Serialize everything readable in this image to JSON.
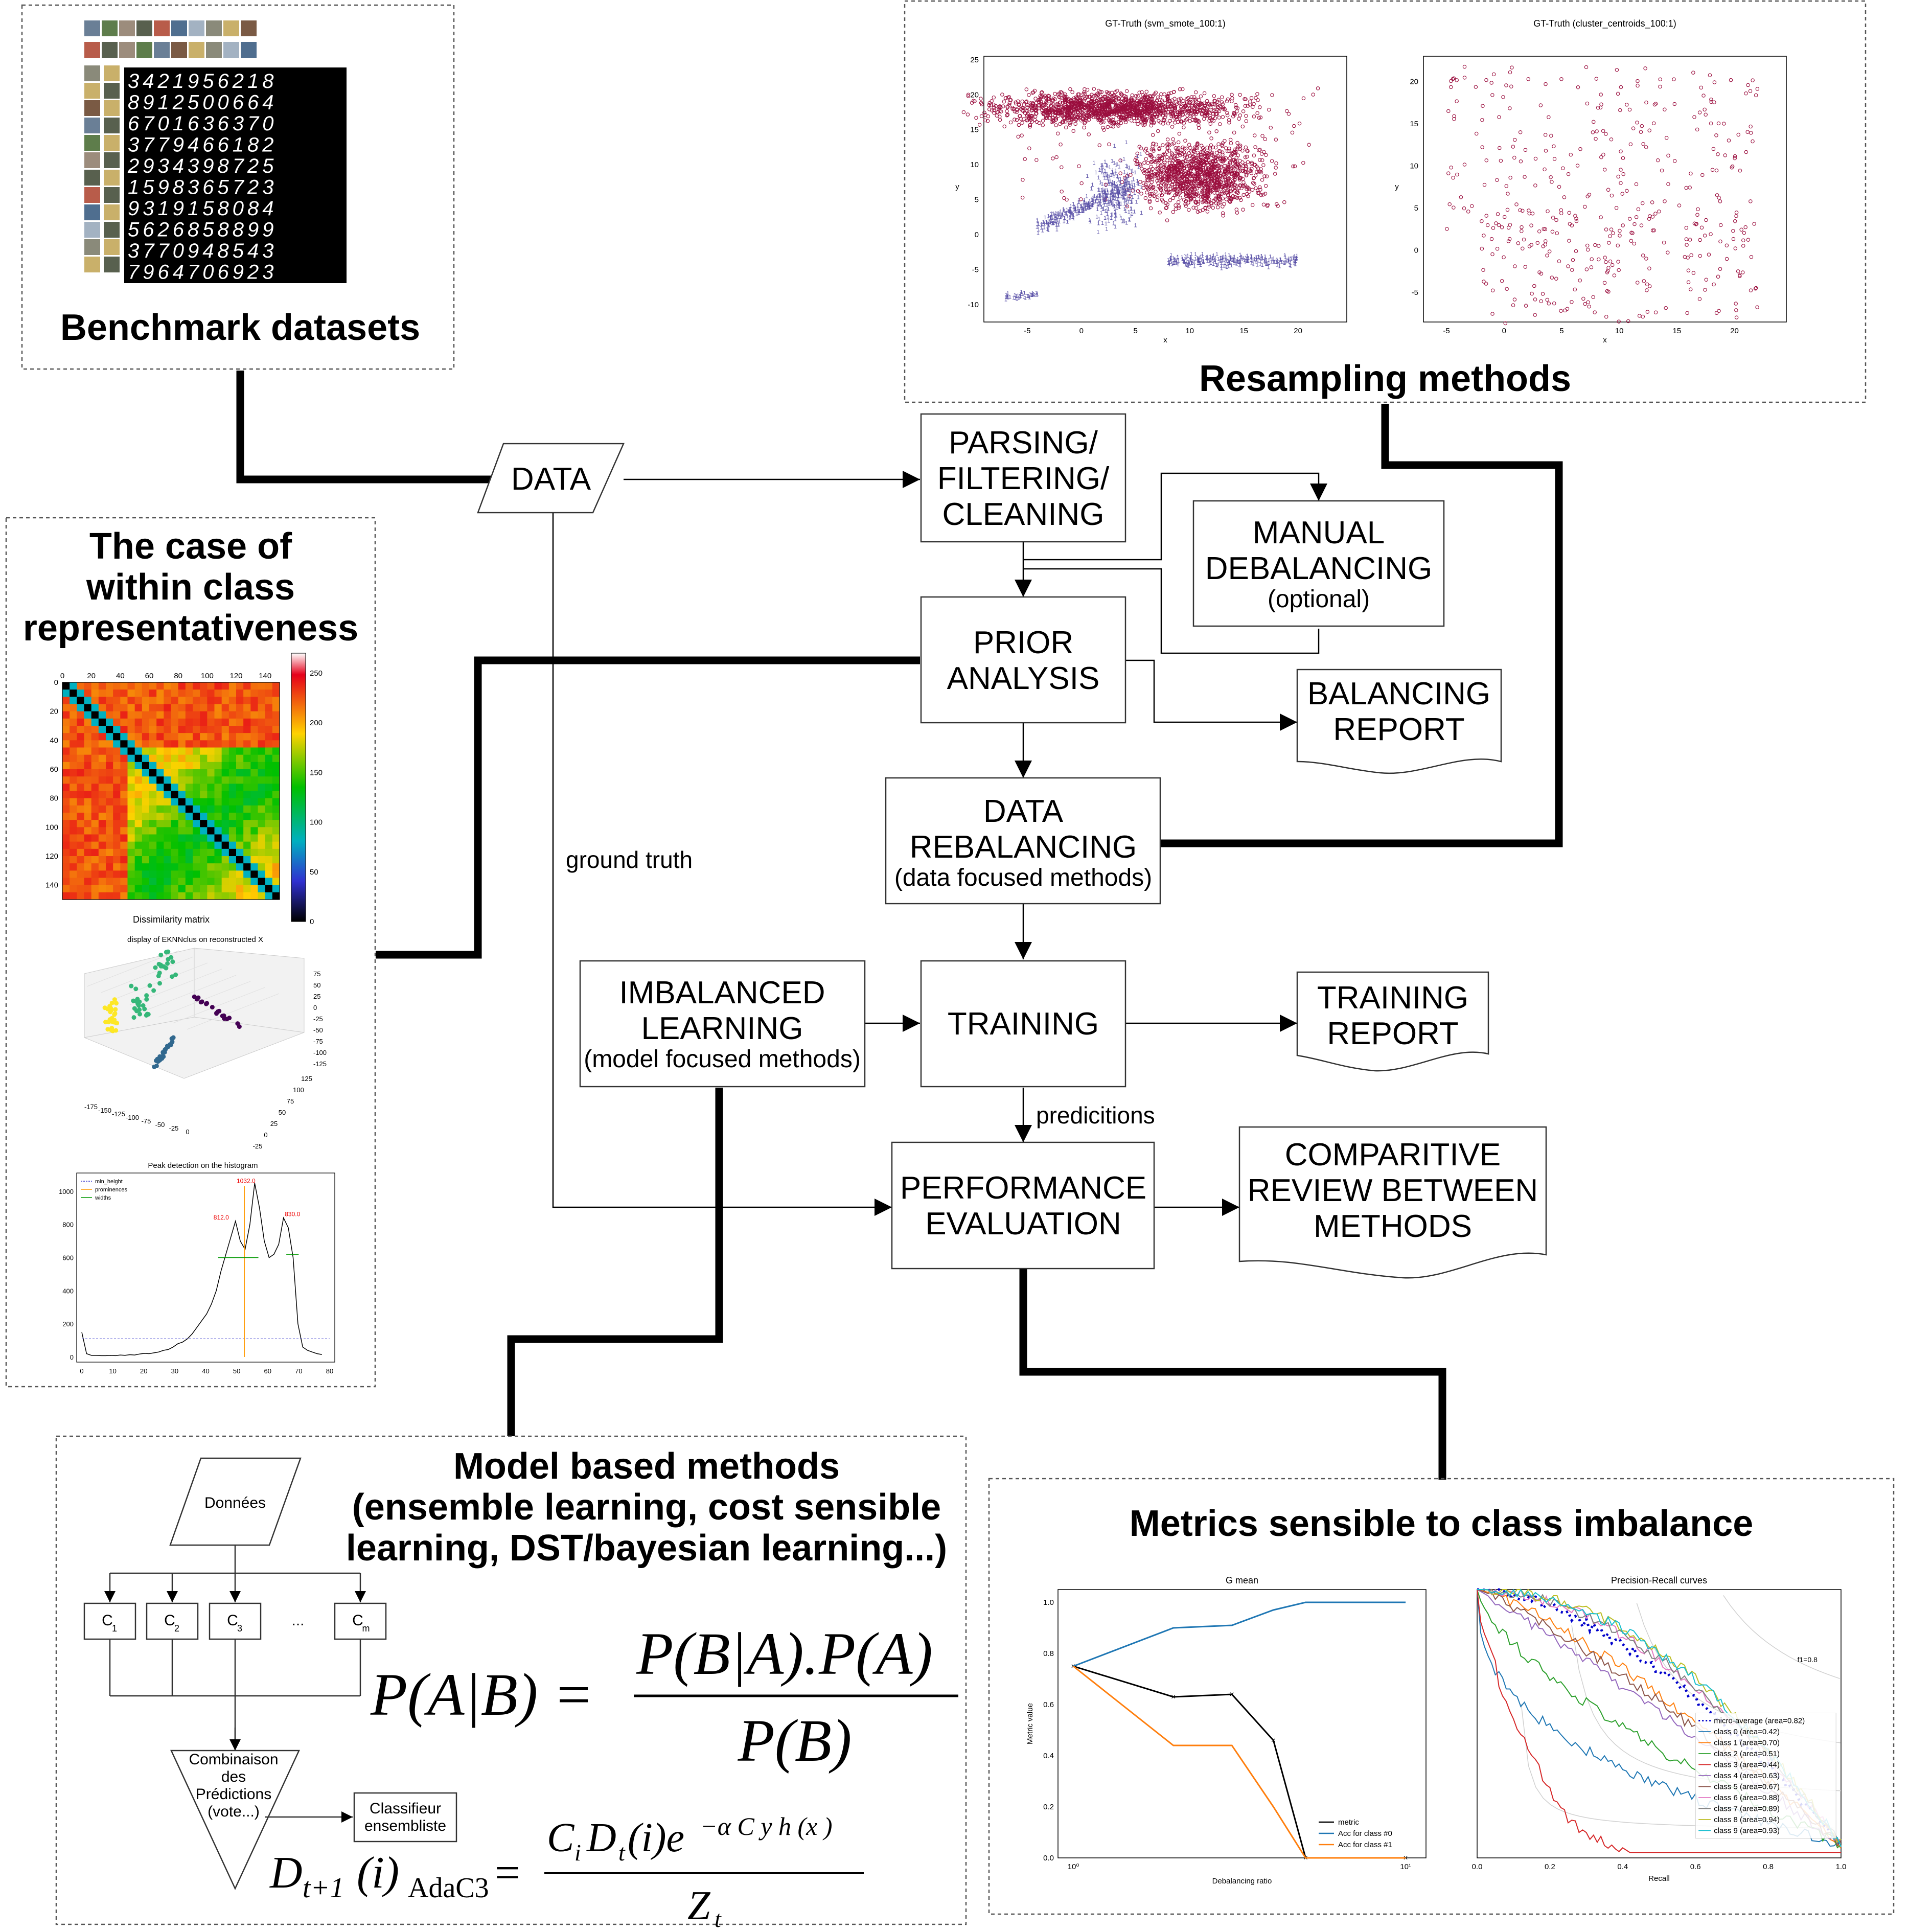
{
  "sections": {
    "benchmark": "Benchmark datasets",
    "resampling": "Resampling methods",
    "within_class": [
      "The case of",
      "within class",
      "representativeness"
    ],
    "model_based": [
      "Model based methods",
      "(ensemble learning, cost sensible",
      "learning, DST/bayesian learning...)"
    ],
    "metrics": "Metrics sensible to class imbalance"
  },
  "flow": {
    "data": "DATA",
    "parsing": [
      "PARSING/",
      "FILTERING/",
      "CLEANING"
    ],
    "manual": [
      "MANUAL",
      "DEBALANCING"
    ],
    "manual_sub": "(optional)",
    "prior": [
      "PRIOR",
      "ANALYSIS"
    ],
    "balancing_report": [
      "BALANCING",
      "REPORT"
    ],
    "rebalancing": [
      "DATA",
      "REBALANCING"
    ],
    "rebalancing_sub": "(data focused methods)",
    "imbalanced": [
      "IMBALANCED",
      "LEARNING"
    ],
    "imbalanced_sub": "(model focused methods)",
    "training": "TRAINING",
    "training_report": [
      "TRAINING",
      "REPORT"
    ],
    "performance": [
      "PERFORMANCE",
      "EVALUATION"
    ],
    "comparative": [
      "COMPARITIVE",
      "REVIEW BETWEEN",
      "METHODS"
    ],
    "ground_truth": "ground truth",
    "predictions": "predicitions"
  },
  "mnist_rows": [
    "3421956218",
    "8912500664",
    "6701636370",
    "3779466182",
    "2934398725",
    "1598365723",
    "9319158084",
    "5626858899",
    "3770948543",
    "7964706923"
  ],
  "resampling_plots": [
    {
      "title": "GT-Truth (svm_smote_100:1)",
      "xlabel": "x",
      "ylabel": "y",
      "xticks": [
        "-5",
        "0",
        "5",
        "10",
        "15",
        "20"
      ],
      "yticks": [
        "25",
        "20",
        "15",
        "10",
        "5",
        "0",
        "-5",
        "-10"
      ]
    },
    {
      "title": "GT-Truth (cluster_centroids_100:1)",
      "xlabel": "x",
      "ylabel": "y",
      "xticks": [
        "-5",
        "0",
        "5",
        "10",
        "15",
        "20"
      ],
      "yticks": [
        "20",
        "15",
        "10",
        "5",
        "0",
        "-5"
      ]
    }
  ],
  "dissimilarity": {
    "title": "Dissimilarity matrix",
    "xticks": [
      "0",
      "20",
      "40",
      "60",
      "80",
      "100",
      "120",
      "140"
    ],
    "yticks": [
      "0",
      "20",
      "40",
      "60",
      "80",
      "100",
      "120",
      "140"
    ],
    "cbar_ticks": [
      "250",
      "200",
      "150",
      "100",
      "50",
      "0"
    ]
  },
  "scatter3d": {
    "title": "display of EKNNclus on reconstructed X",
    "xticks": [
      "-175",
      "-150",
      "-125",
      "-100",
      "-75",
      "-50",
      "-25",
      "0"
    ],
    "zticks": [
      "75",
      "50",
      "25",
      "0",
      "-25",
      "-50",
      "-75",
      "-100",
      "-125"
    ],
    "yticks": [
      "125",
      "100",
      "75",
      "50",
      "25",
      "0",
      "-25"
    ]
  },
  "histogram": {
    "title": "Peak detection on the histogram",
    "legend": [
      "min_height",
      "prominences",
      "widths"
    ],
    "peaks": [
      "812.0",
      "1032.0",
      "830.0"
    ],
    "xticks": [
      "0",
      "10",
      "20",
      "30",
      "40",
      "50",
      "60",
      "70",
      "80"
    ],
    "yticks": [
      "1000",
      "800",
      "600",
      "400",
      "200",
      "0"
    ]
  },
  "ensemble": {
    "donnees": "Données",
    "classifiers": [
      "C",
      "C",
      "C",
      "...",
      "C"
    ],
    "classifier_subs": [
      "1",
      "2",
      "3",
      "",
      "m"
    ],
    "combinaison": [
      "Combinaison",
      "des",
      "Prédictions",
      "(vote...)"
    ],
    "classifieur": [
      "Classifieur",
      "ensembliste"
    ]
  },
  "formulas": {
    "bayes_lhs": "P(A|B) =",
    "bayes_num": "P(B|A).P(A)",
    "bayes_den": "P(B)",
    "adac3_lhs": "D",
    "adac3_sub": "t+1",
    "adac3_arg": "(i)",
    "adac3_name": "AdaC3",
    "adac3_eq": "=",
    "adac3_num": "C",
    "adac3_num2": "D",
    "adac3_den": "Z"
  },
  "gmean": {
    "title": "G mean",
    "xlabel": "Debalancing ratio",
    "ylabel": "Metric value",
    "yticks": [
      "1.0",
      "0.8",
      "0.6",
      "0.4",
      "0.2",
      "0.0"
    ],
    "xticks": [
      "10⁰",
      "10¹"
    ],
    "legend": [
      "metric",
      "Acc for class #0",
      "Acc for class #1"
    ],
    "series_colors": [
      "#000000",
      "#1f77b4",
      "#ff7f0e"
    ]
  },
  "chart_data": [
    {
      "type": "line",
      "title": "G mean",
      "xlabel": "Debalancing ratio",
      "ylabel": "Metric value",
      "x": [
        1,
        2,
        3,
        4,
        5,
        10
      ],
      "series": [
        {
          "name": "metric",
          "values": [
            0.75,
            0.63,
            0.64,
            0.46,
            0.0,
            0.0
          ]
        },
        {
          "name": "Acc for class #0",
          "values": [
            0.75,
            0.9,
            0.91,
            0.97,
            1.0,
            1.0
          ]
        },
        {
          "name": "Acc for class #1",
          "values": [
            0.75,
            0.44,
            0.44,
            0.2,
            0.0,
            0.0
          ]
        }
      ],
      "ylim": [
        0,
        1.0
      ]
    },
    {
      "type": "line",
      "title": "Precision-Recall curves",
      "xlabel": "Recall",
      "legend_entries": [
        "micro-average (area=0.82)",
        "class 0 (area=0.42)",
        "class 1 (area=0.70)",
        "class 2 (area=0.51)",
        "class 3 (area=0.44)",
        "class 4 (area=0.63)",
        "class 5 (area=0.67)",
        "class 6 (area=0.88)",
        "class 7 (area=0.89)",
        "class 8 (area=0.94)",
        "class 9 (area=0.93)"
      ],
      "xlim": [
        0,
        1.0
      ]
    }
  ],
  "pr": {
    "title": "Precision-Recall curves",
    "xlabel": "Recall",
    "xticks": [
      "0.0",
      "0.2",
      "0.4",
      "0.6",
      "0.8",
      "1.0"
    ],
    "f1_label": "f1=0.8",
    "legend": [
      "micro-average (area=0.82)",
      "class 0 (area=0.42)",
      "class 1 (area=0.70)",
      "class 2 (area=0.51)",
      "class 3 (area=0.44)",
      "class 4 (area=0.63)",
      "class 5 (area=0.67)",
      "class 6 (area=0.88)",
      "class 7 (area=0.89)",
      "class 8 (area=0.94)",
      "class 9 (area=0.93)"
    ],
    "colors": [
      "#0000cc",
      "#1f77b4",
      "#ff7f0e",
      "#2ca02c",
      "#d62728",
      "#9467bd",
      "#8c564b",
      "#e377c2",
      "#7f7f7f",
      "#bcbd22",
      "#17becf"
    ]
  },
  "colors": {
    "crimson": "#9b0e3e",
    "purple": "#5b52a8"
  }
}
